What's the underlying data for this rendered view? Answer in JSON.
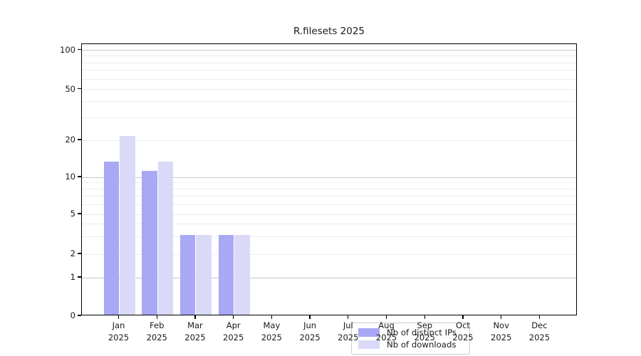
{
  "chart_data": {
    "type": "bar",
    "title": "R.filesets 2025",
    "categories": [
      "Jan 2025",
      "Feb 2025",
      "Mar 2025",
      "Apr 2025",
      "May 2025",
      "Jun 2025",
      "Jul 2025",
      "Aug 2025",
      "Sep 2025",
      "Oct 2025",
      "Nov 2025",
      "Dec 2025"
    ],
    "months": [
      "Jan",
      "Feb",
      "Mar",
      "Apr",
      "May",
      "Jun",
      "Jul",
      "Aug",
      "Sep",
      "Oct",
      "Nov",
      "Dec"
    ],
    "year_label": "2025",
    "series": [
      {
        "name": "Nb of distinct IPs",
        "color": "#a8a8f5",
        "values": [
          13,
          11,
          3,
          3,
          0,
          0,
          0,
          0,
          0,
          0,
          0,
          0
        ]
      },
      {
        "name": "Nb of downloads",
        "color": "#dadaf8",
        "values": [
          21,
          13,
          3,
          3,
          0,
          0,
          0,
          0,
          0,
          0,
          0,
          0
        ]
      }
    ],
    "xlabel": "",
    "ylabel": "",
    "y_axis": {
      "scale": "log (zero pinned to baseline)",
      "tick_labels": [
        0,
        1,
        2,
        5,
        10,
        20,
        50,
        100
      ],
      "major_gridlines": [
        1,
        10,
        100
      ],
      "minor_gridlines": [
        2,
        3,
        4,
        6,
        7,
        8,
        9,
        20,
        30,
        40,
        60,
        70,
        80,
        90
      ],
      "labeled_minor_gridlines": [
        2,
        5,
        20,
        50
      ],
      "ylim": [
        0,
        110
      ]
    },
    "legend": {
      "items": [
        "Nb of distinct IPs",
        "Nb of downloads"
      ],
      "position": "bottom-center-inside"
    },
    "grid": "on",
    "colors": {
      "axis_frame": "#000000",
      "major_grid": "#c6c6c6",
      "minor_grid": "#ececec",
      "text": "#1a1a1a",
      "background": "#ffffff",
      "legend_border": "#cccccc"
    }
  }
}
